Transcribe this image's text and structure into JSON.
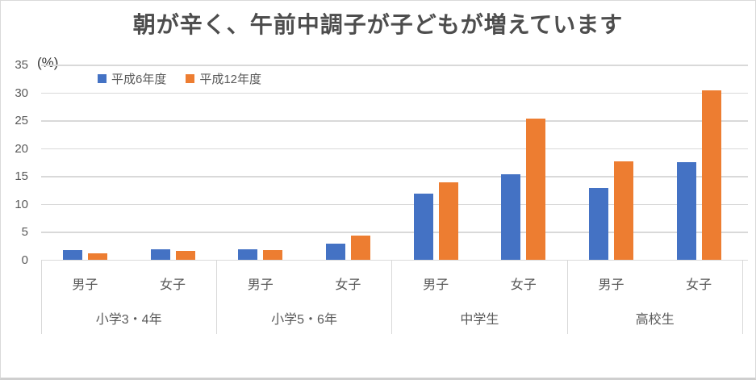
{
  "chart_data": {
    "type": "bar",
    "title": "朝が辛く、午前中調子が子どもが増えています",
    "unit_label": "(%)",
    "ylim": [
      0,
      35
    ],
    "yticks": [
      0,
      5,
      10,
      15,
      20,
      25,
      30,
      35
    ],
    "grid": true,
    "legend_position": "top-left-inside",
    "groups": [
      "小学3・4年",
      "小学5・6年",
      "中学生",
      "高校生"
    ],
    "subcategories": [
      "男子",
      "女子"
    ],
    "categories": [
      "小学3・4年 男子",
      "小学3・4年 女子",
      "小学5・6年 男子",
      "小学5・6年 女子",
      "中学生 男子",
      "中学生 女子",
      "高校生 男子",
      "高校生 女子"
    ],
    "series": [
      {
        "name": "平成6年度",
        "color": "#4472C4",
        "values": [
          1.8,
          2.0,
          2.0,
          3.0,
          12.0,
          15.5,
          13.0,
          17.6
        ]
      },
      {
        "name": "平成12年度",
        "color": "#ED7D31",
        "values": [
          1.2,
          1.6,
          1.8,
          4.4,
          14.0,
          25.5,
          17.8,
          30.5
        ]
      }
    ]
  },
  "colors": {
    "series1": "#4472C4",
    "series2": "#ED7D31",
    "gridline": "#D9D9D9",
    "axis_text": "#595959",
    "title_text": "#4D4D4D",
    "chart_border": "#D9D9D9"
  }
}
